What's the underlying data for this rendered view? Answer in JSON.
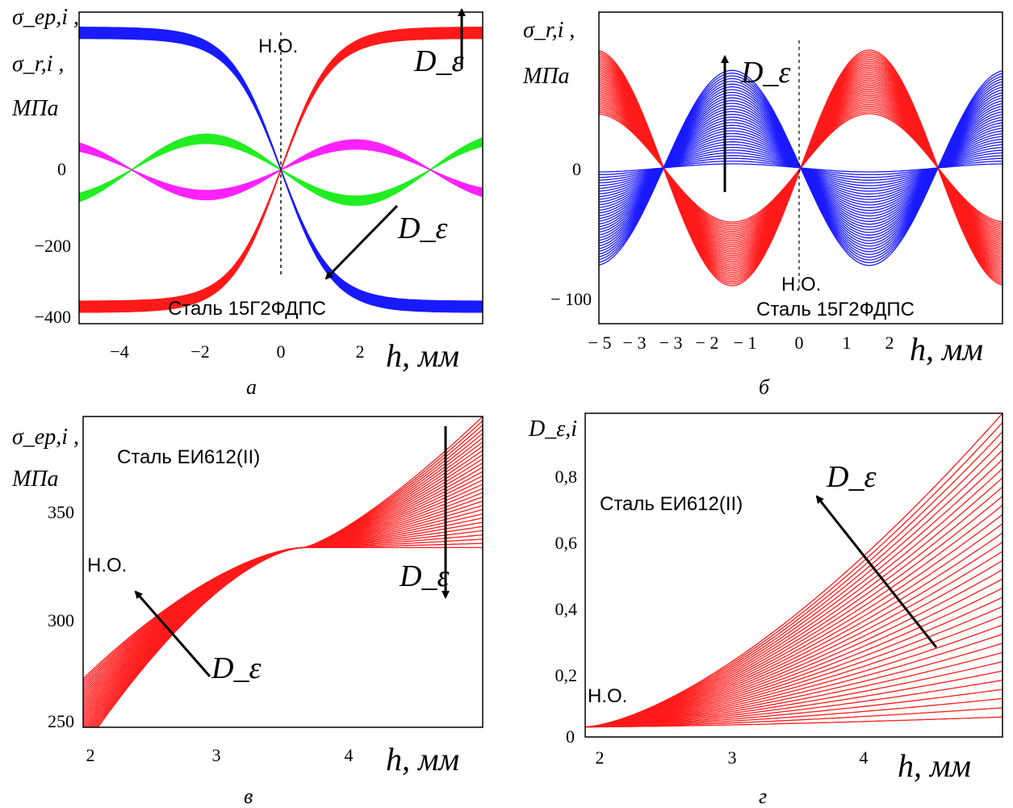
{
  "colors": {
    "red": "#ff1a1a",
    "blue": "#1a1aff",
    "green": "#22ee22",
    "magenta": "#ff22ff",
    "axis": "#000000"
  },
  "chart_data": [
    {
      "panel": "а",
      "type": "line",
      "ylabels": [
        "σ_ep,i ,",
        "σ_r,i ,",
        "МПа"
      ],
      "xlabel": "h, мм",
      "xlim": [
        -5,
        5
      ],
      "ylim": [
        -410,
        420
      ],
      "xticks": [
        "−4",
        "−2",
        "0",
        "2"
      ],
      "xtick_values": [
        -4,
        -2,
        0,
        2
      ],
      "yticks": [
        "0",
        "−200",
        "−400"
      ],
      "ytick_values": [
        0,
        -200,
        -400
      ],
      "grid": false,
      "annotations": [
        "Н.О.",
        "Сталь 15Г2ФДПС",
        "D_ε",
        "D_ε"
      ],
      "neutral_axis_x": 0,
      "series": [
        {
          "color": "red",
          "family": "tanh",
          "x_range": [
            -5,
            5
          ],
          "amp_range": [
            350,
            380
          ],
          "steep": 0.8,
          "bias_range": [
            0,
            0
          ],
          "curves": 22
        },
        {
          "color": "blue",
          "family": "tanh",
          "x_range": [
            -5,
            5
          ],
          "amp_range": [
            -350,
            -380
          ],
          "steep": 0.8,
          "bias_range": [
            0,
            0
          ],
          "curves": 22
        },
        {
          "color": "green",
          "family": "sin",
          "x_range": [
            -5,
            5
          ],
          "amp_range": [
            -70,
            -95
          ],
          "period": 7.4,
          "bias_range": [
            0,
            0
          ],
          "curves": 22
        },
        {
          "color": "magenta",
          "family": "sin",
          "x_range": [
            -5,
            5
          ],
          "amp_range": [
            55,
            80
          ],
          "period": 7.4,
          "bias_range": [
            0,
            0
          ],
          "curves": 22
        }
      ]
    },
    {
      "panel": "б",
      "type": "line",
      "ylabels": [
        "σ_r,i ,",
        "МПа"
      ],
      "xlabel": "h, мм",
      "xlim": [
        -5,
        5
      ],
      "ylim": [
        -115,
        115
      ],
      "xticks": [
        "− 5",
        "− 3",
        "− 3",
        "− 2",
        "− 1",
        "0",
        "1",
        "2"
      ],
      "xtick_values": [
        -4.7,
        -3.85,
        -2.95,
        -2.05,
        -1.15,
        -0.1,
        1.05,
        2.05
      ],
      "yticks": [
        "0",
        "− 100"
      ],
      "ytick_values": [
        0,
        -100
      ],
      "grid": false,
      "annotations": [
        "Н.О.",
        "Сталь 15Г2ФДПС",
        "D_ε"
      ],
      "neutral_axis_x": 0,
      "series": [
        {
          "color": "red",
          "family": "sin",
          "x_range": [
            -5,
            5
          ],
          "amp_range": [
            40,
            87
          ],
          "period": 6.8,
          "bias_range": [
            0,
            0
          ],
          "curves": 35
        },
        {
          "color": "blue",
          "family": "sin",
          "x_range": [
            -5,
            5
          ],
          "amp_range": [
            -3,
            -72
          ],
          "period": 6.8,
          "bias_range": [
            0,
            0
          ],
          "curves": 35
        }
      ]
    },
    {
      "panel": "в",
      "type": "line",
      "ylabels": [
        "σ_ep,i ,",
        "МПа"
      ],
      "xlabel": "h, мм",
      "xlim": [
        1.95,
        4.95
      ],
      "ylim": [
        245,
        392
      ],
      "xticks": [
        "2",
        "3",
        "4"
      ],
      "xtick_values": [
        2,
        3,
        4
      ],
      "yticks": [
        "350",
        "300",
        "250"
      ],
      "ytick_values": [
        350,
        300,
        250
      ],
      "grid": false,
      "annotations": [
        "Сталь ЕИ612(II)",
        "Н.О.",
        "D_ε",
        "D_ε"
      ],
      "series": [
        {
          "color": "red",
          "family": "cubic",
          "x_range": [
            1.95,
            4.95
          ],
          "start_range": [
            268,
            235
          ],
          "mid": 330,
          "mid_x": 3.6,
          "end_range": [
            330,
            392
          ],
          "curves": 32
        }
      ]
    },
    {
      "panel": "г",
      "type": "line",
      "ylabels": [
        "D_ε,i"
      ],
      "xlabel": "h, мм",
      "xlim": [
        1.9,
        4.95
      ],
      "ylim": [
        -0.01,
        0.96
      ],
      "xticks": [
        "2",
        "3",
        "4"
      ],
      "xtick_values": [
        2,
        3,
        4
      ],
      "yticks": [
        "0",
        "0,2",
        "0,4",
        "0,6",
        "0,8"
      ],
      "ytick_values": [
        0,
        0.2,
        0.4,
        0.6,
        0.8
      ],
      "grid": false,
      "annotations": [
        "Сталь ЕИ612(II)",
        "Н.О.",
        "D_ε"
      ],
      "series": [
        {
          "color": "red",
          "family": "power",
          "x_range": [
            1.9,
            4.95
          ],
          "x0": 1.9,
          "y0": 0.02,
          "end_range": [
            0.05,
            0.96
          ],
          "exponent": 1.5,
          "curves": 34
        }
      ]
    }
  ],
  "panel_labels": [
    "а",
    "б",
    "в",
    "г"
  ]
}
